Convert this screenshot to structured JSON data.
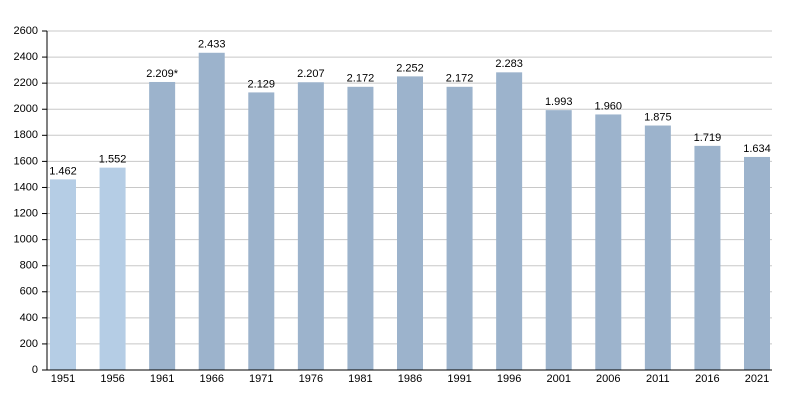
{
  "chart_data": {
    "type": "bar",
    "categories": [
      "1951",
      "1956",
      "1961",
      "1966",
      "1971",
      "1976",
      "1981",
      "1986",
      "1991",
      "1996",
      "2001",
      "2006",
      "2011",
      "2016",
      "2021"
    ],
    "values": [
      1462,
      1552,
      2209,
      2433,
      2129,
      2207,
      2172,
      2252,
      2172,
      2283,
      1993,
      1960,
      1875,
      1719,
      1634
    ],
    "value_labels": [
      "1.462",
      "1.552",
      "2.209*",
      "2.433",
      "2.129",
      "2.207",
      "2.172",
      "2.252",
      "2.172",
      "2.283",
      "1.993",
      "1.960",
      "1.875",
      "1.719",
      "1.634"
    ],
    "colors": [
      "#b5cde5",
      "#b5cde5",
      "#9cb3cc",
      "#9cb3cc",
      "#9cb3cc",
      "#9cb3cc",
      "#9cb3cc",
      "#9cb3cc",
      "#9cb3cc",
      "#9cb3cc",
      "#9cb3cc",
      "#9cb3cc",
      "#9cb3cc",
      "#9cb3cc",
      "#9cb3cc"
    ],
    "ylim": [
      0,
      2600
    ],
    "yticks": [
      0,
      200,
      400,
      600,
      800,
      1000,
      1200,
      1400,
      1600,
      1800,
      2000,
      2200,
      2400,
      2600
    ],
    "grid": true
  }
}
